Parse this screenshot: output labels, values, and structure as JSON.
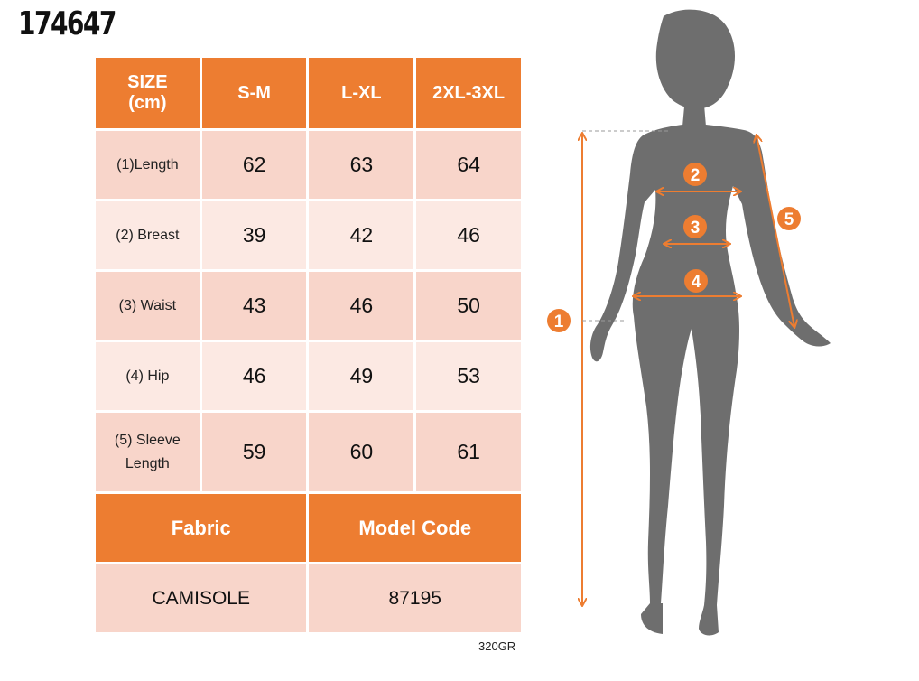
{
  "product_code": "174647",
  "table": {
    "header": {
      "size_label_line1": "SIZE",
      "size_label_line2": "(cm)",
      "sizes": [
        "S-M",
        "L-XL",
        "2XL-3XL"
      ]
    },
    "rows": [
      {
        "label": "(1)Length",
        "values": [
          "62",
          "63",
          "64"
        ]
      },
      {
        "label": "(2) Breast",
        "values": [
          "39",
          "42",
          "46"
        ]
      },
      {
        "label": "(3) Waist",
        "values": [
          "43",
          "46",
          "50"
        ]
      },
      {
        "label": "(4) Hip",
        "values": [
          "46",
          "49",
          "53"
        ]
      },
      {
        "label_line1": "(5) Sleeve",
        "label_line2": "Length",
        "values": [
          "59",
          "60",
          "61"
        ]
      }
    ],
    "footer_headers": {
      "fabric": "Fabric",
      "model_code": "Model Code"
    },
    "footer_values": {
      "fabric": "CAMISOLE",
      "model_code": "87195"
    }
  },
  "gramaj": "320GR",
  "figure": {
    "markers": [
      "1",
      "2",
      "3",
      "4",
      "5"
    ]
  },
  "colors": {
    "accent": "#ED7D31",
    "row_dark": "#F8D5CA",
    "row_light": "#FCE9E3",
    "silhouette": "#6E6E6E"
  }
}
